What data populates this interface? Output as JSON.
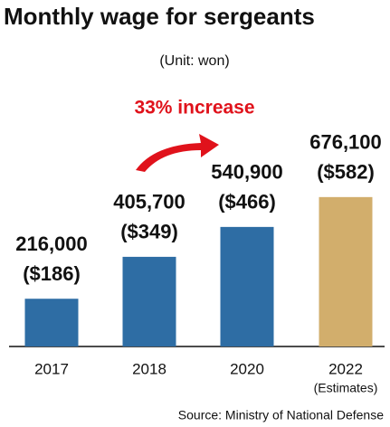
{
  "chart_data": {
    "type": "bar",
    "title": "Monthly wage for sergeants",
    "subtitle": "(Unit: won)",
    "annotation": "33% increase",
    "categories": [
      "2017",
      "2018",
      "2020",
      "2022"
    ],
    "category_note": "(Estimates)",
    "values": [
      216000,
      405700,
      540900,
      676100
    ],
    "value_labels": [
      "216,000",
      "405,700",
      "540,900",
      "676,100"
    ],
    "usd_labels": [
      "($186)",
      "($349)",
      "($466)",
      "($582)"
    ],
    "colors": [
      "#2e6da4",
      "#2e6da4",
      "#2e6da4",
      "#d2ae6c"
    ],
    "ylim": [
      0,
      700000
    ],
    "source": "Source: Ministry of National Defense"
  }
}
